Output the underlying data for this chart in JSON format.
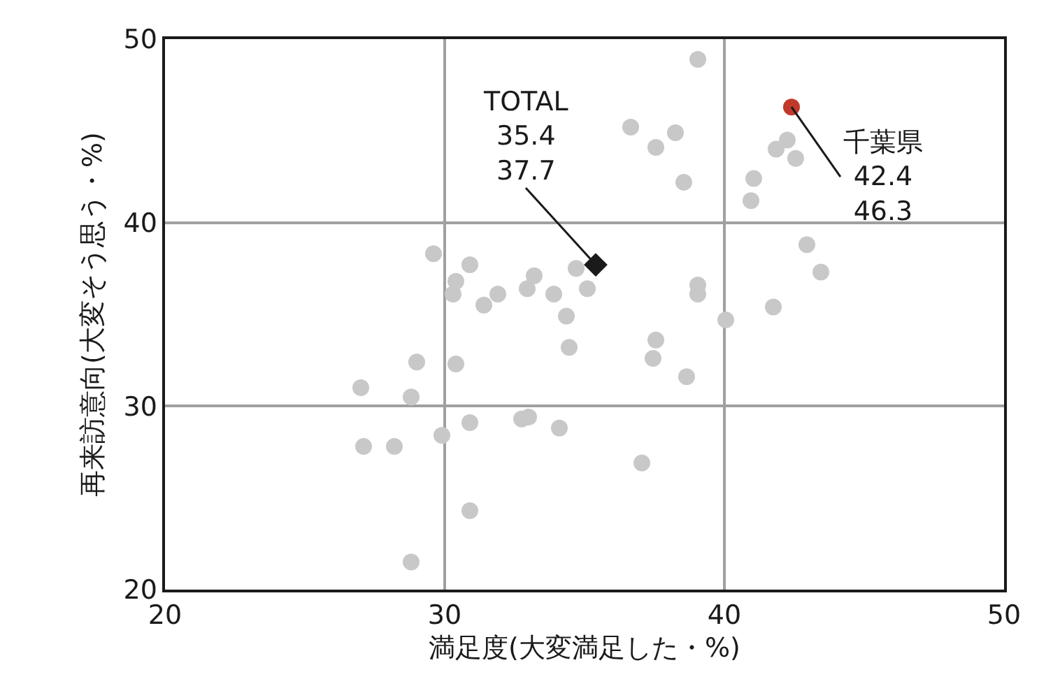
{
  "chart_data": {
    "type": "scatter",
    "xlabel": "満足度(大変満足した・%)",
    "ylabel": "再来訪意向(大変そう思う・%)",
    "xlim": [
      20,
      50
    ],
    "xticks": [
      20,
      30,
      40,
      50
    ],
    "ylim": [
      20,
      50
    ],
    "yticks": [
      20,
      30,
      40,
      50
    ],
    "grid": true,
    "series": [
      {
        "color": "#c8c8c8",
        "marker": "circle",
        "x": [
          29.6,
          30.9,
          30.4,
          30.3,
          31.4,
          31.9,
          32.95,
          33.2,
          33.9,
          34.35,
          34.45,
          34.7,
          35.1,
          37.55,
          37.45,
          29.0,
          30.4,
          27.0,
          28.8,
          27.1,
          28.2,
          29.9,
          30.9,
          32.75,
          33.0,
          34.1,
          37.05,
          30.9,
          28.8,
          39.05,
          36.65,
          38.25,
          37.55,
          38.55,
          42.25,
          41.85,
          42.55,
          41.05,
          40.95,
          42.95,
          43.45,
          41.75,
          40.05,
          39.05,
          39.05,
          38.65
        ],
        "values": [
          38.3,
          37.7,
          36.8,
          36.1,
          35.5,
          36.1,
          36.4,
          37.1,
          36.1,
          34.9,
          33.2,
          37.5,
          36.4,
          33.6,
          32.6,
          32.4,
          32.3,
          31.0,
          30.5,
          27.8,
          27.8,
          28.4,
          29.1,
          29.3,
          29.4,
          28.8,
          26.9,
          24.3,
          21.5,
          48.9,
          45.2,
          44.9,
          44.1,
          42.2,
          44.5,
          44.0,
          43.5,
          42.4,
          41.2,
          38.8,
          37.3,
          35.4,
          34.7,
          36.6,
          36.1,
          31.6
        ]
      },
      {
        "color": "#1a1a1a",
        "marker": "diamond",
        "x": [
          35.4
        ],
        "values": [
          37.7
        ]
      },
      {
        "color": "#c0392b",
        "marker": "circle",
        "x": [
          42.4
        ],
        "values": [
          46.3
        ]
      }
    ],
    "annotations": [
      {
        "text": "TOTAL\n35.4\n37.7",
        "x": 35.4,
        "y": 37.7
      },
      {
        "text": "千葉県\n42.4\n46.3",
        "x": 42.4,
        "y": 46.3
      }
    ]
  }
}
